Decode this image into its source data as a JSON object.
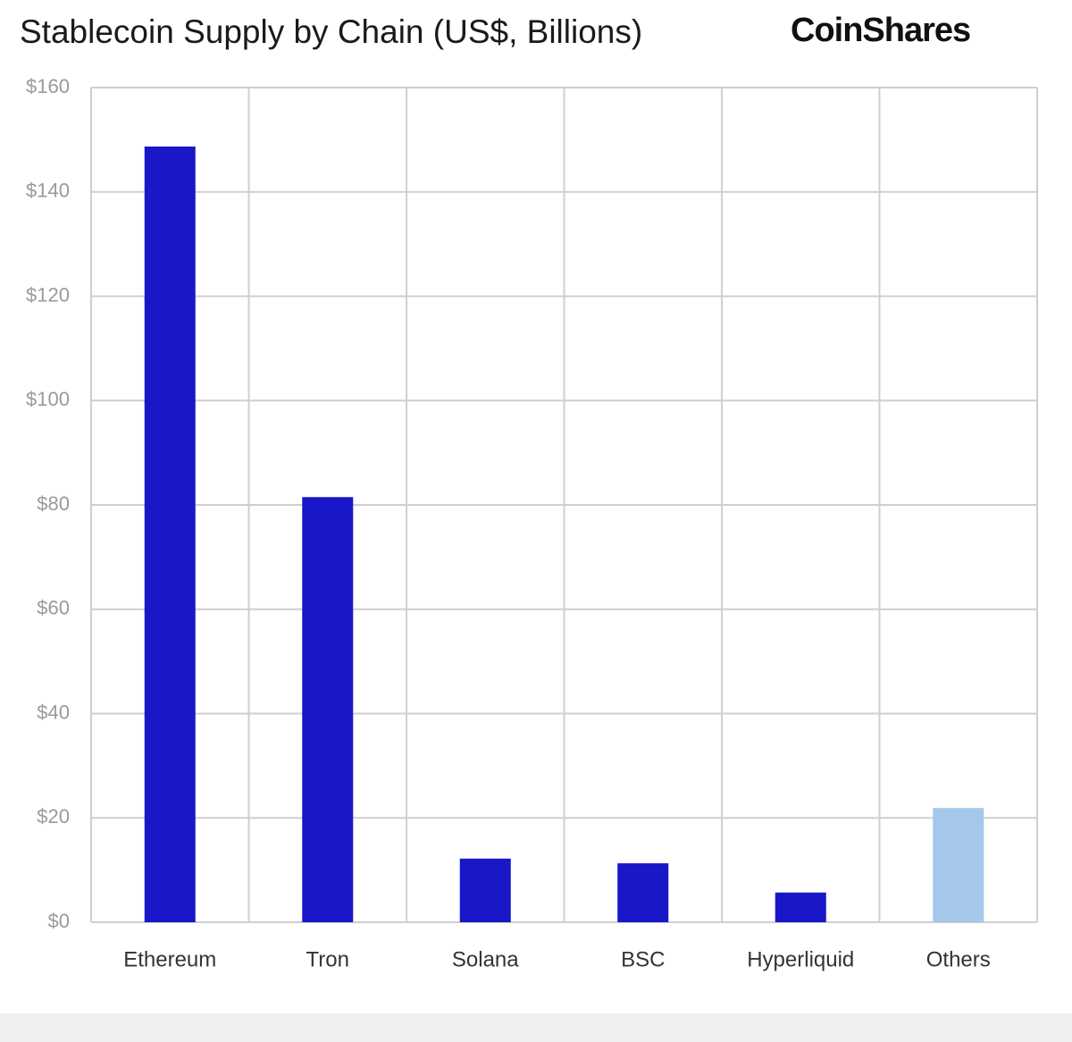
{
  "chart_data": {
    "type": "bar",
    "title": "Stablecoin Supply by Chain (US$, Billions)",
    "brand": "CoinShares",
    "categories": [
      "Ethereum",
      "Tron",
      "Solana",
      "BSC",
      "Hyperliquid",
      "Others"
    ],
    "values": [
      148.7,
      81.5,
      12.2,
      11.3,
      5.7,
      21.9
    ],
    "colors": [
      "#1a17c9",
      "#1a17c9",
      "#1a17c9",
      "#1a17c9",
      "#1a17c9",
      "#a5c8ea"
    ],
    "ylim": [
      0,
      160
    ],
    "yticks": [
      {
        "value": 0,
        "label": "$0"
      },
      {
        "value": 20,
        "label": "$20"
      },
      {
        "value": 40,
        "label": "$40"
      },
      {
        "value": 60,
        "label": "$60"
      },
      {
        "value": 80,
        "label": "$80"
      },
      {
        "value": 100,
        "label": "$100"
      },
      {
        "value": 120,
        "label": "$120"
      },
      {
        "value": 140,
        "label": "$140"
      },
      {
        "value": 160,
        "label": "$160"
      }
    ],
    "grid": true
  }
}
